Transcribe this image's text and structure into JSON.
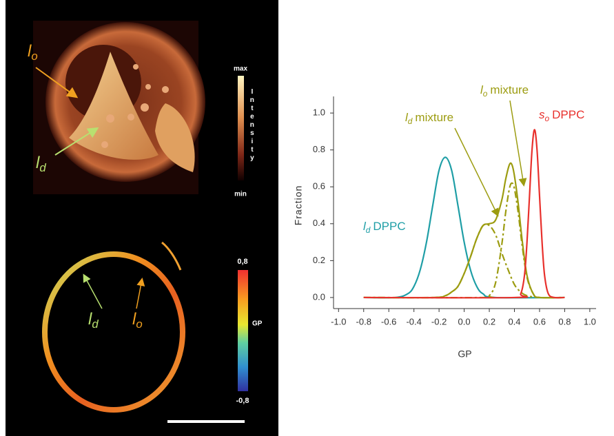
{
  "figure": {
    "intensity_image": {
      "labels": [
        {
          "symbol": "l",
          "subscript": "o",
          "color": "#f0a020"
        },
        {
          "symbol": "l",
          "subscript": "d",
          "color": "#b8e070"
        }
      ],
      "colorbar": {
        "max": "max",
        "title": "Intensity",
        "min": "min"
      }
    },
    "gp_image": {
      "labels": [
        {
          "symbol": "l",
          "subscript": "d",
          "color": "#b8e070"
        },
        {
          "symbol": "l",
          "subscript": "o",
          "color": "#f0a020"
        }
      ],
      "colorbar": {
        "max": "0,8",
        "title": "GP",
        "min": "-0,8"
      }
    }
  },
  "chart_data": {
    "type": "line",
    "x_label": "GP",
    "y_label": "Fraction",
    "xlim": [
      -1.04,
      1.05
    ],
    "ylim": [
      -0.06,
      1.09
    ],
    "xticks": [
      {
        "value": -1,
        "label": "-1.0"
      },
      -0.8,
      -0.6,
      -0.4,
      -0.2,
      {
        "value": 0,
        "label": "0.0"
      },
      0.2,
      0.4,
      0.6,
      0.8,
      {
        "value": 1,
        "label": "1.0"
      }
    ],
    "yticks": [
      {
        "value": 0,
        "label": "0.0"
      },
      0.2,
      0.4,
      0.6,
      0.8,
      {
        "value": 1,
        "label": "1.0"
      }
    ],
    "series": [
      {
        "color": "#1e9ea6",
        "dash": false,
        "x": [
          -0.8,
          -0.55,
          -0.45,
          -0.4,
          -0.35,
          -0.3,
          -0.25,
          -0.2,
          -0.15,
          -0.1,
          -0.05,
          0,
          0.05,
          0.1,
          0.15,
          0.25,
          0.8
        ],
        "values": [
          0,
          0,
          0.02,
          0.06,
          0.15,
          0.3,
          0.5,
          0.69,
          0.76,
          0.69,
          0.5,
          0.3,
          0.15,
          0.06,
          0.02,
          0,
          0
        ]
      },
      {
        "color": "#9c9c10",
        "dash": true,
        "x": [
          -0.8,
          -0.25,
          -0.15,
          -0.1,
          -0.05,
          0,
          0.05,
          0.1,
          0.15,
          0.2,
          0.25,
          0.3,
          0.35,
          0.4,
          0.45,
          0.5,
          0.6,
          0.8
        ],
        "values": [
          0,
          0,
          0.01,
          0.03,
          0.06,
          0.13,
          0.22,
          0.32,
          0.39,
          0.39,
          0.34,
          0.24,
          0.15,
          0.07,
          0.03,
          0.01,
          0,
          0
        ]
      },
      {
        "color": "#9c9c10",
        "dash": true,
        "x": [
          -0.8,
          0.15,
          0.2,
          0.25,
          0.3,
          0.33,
          0.36,
          0.38,
          0.4,
          0.43,
          0.46,
          0.5,
          0.55,
          0.6,
          0.8
        ],
        "values": [
          0,
          0,
          0.01,
          0.08,
          0.29,
          0.46,
          0.59,
          0.62,
          0.59,
          0.46,
          0.29,
          0.11,
          0.02,
          0,
          0
        ]
      },
      {
        "color": "#9c9c10",
        "dash": false,
        "x": [
          -0.8,
          -0.25,
          -0.15,
          -0.1,
          -0.05,
          0,
          0.05,
          0.1,
          0.15,
          0.2,
          0.25,
          0.3,
          0.33,
          0.36,
          0.38,
          0.4,
          0.43,
          0.46,
          0.5,
          0.55,
          0.6,
          0.8
        ],
        "values": [
          0,
          0,
          0.01,
          0.03,
          0.06,
          0.13,
          0.22,
          0.32,
          0.39,
          0.4,
          0.42,
          0.53,
          0.64,
          0.72,
          0.72,
          0.66,
          0.51,
          0.32,
          0.12,
          0.02,
          0,
          0
        ]
      },
      {
        "color": "#e8302c",
        "dash": false,
        "x": [
          -0.8,
          0.4,
          0.45,
          0.48,
          0.5,
          0.52,
          0.54,
          0.56,
          0.58,
          0.6,
          0.62,
          0.64,
          0.67,
          0.72,
          0.8
        ],
        "values": [
          0,
          0,
          0.02,
          0.12,
          0.3,
          0.55,
          0.8,
          0.91,
          0.8,
          0.55,
          0.3,
          0.12,
          0.02,
          0,
          0
        ]
      }
    ],
    "annotations": [
      {
        "symbol": "l",
        "subscript": "d",
        "text": "DPPC",
        "color": "#1e9ea6"
      },
      {
        "symbol": "l",
        "subscript": "d",
        "text": "mixture",
        "color": "#9c9c10"
      },
      {
        "symbol": "l",
        "subscript": "o",
        "text": "mixture",
        "color": "#9c9c10"
      },
      {
        "symbol": "s",
        "subscript": "o",
        "text": "DPPC",
        "color": "#e8302c"
      }
    ]
  }
}
